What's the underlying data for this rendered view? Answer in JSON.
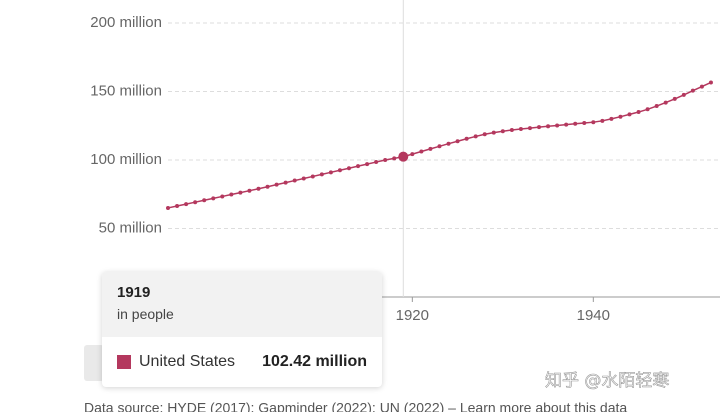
{
  "chart_data": {
    "type": "line",
    "x": [
      1893,
      1894,
      1895,
      1896,
      1897,
      1898,
      1899,
      1900,
      1901,
      1902,
      1903,
      1904,
      1905,
      1906,
      1907,
      1908,
      1909,
      1910,
      1911,
      1912,
      1913,
      1914,
      1915,
      1916,
      1917,
      1918,
      1919,
      1920,
      1921,
      1922,
      1923,
      1924,
      1925,
      1926,
      1927,
      1928,
      1929,
      1930,
      1931,
      1932,
      1933,
      1934,
      1935,
      1936,
      1937,
      1938,
      1939,
      1940,
      1941,
      1942,
      1943,
      1944,
      1945,
      1946,
      1947,
      1948,
      1949,
      1950,
      1951,
      1952,
      1953
    ],
    "series": [
      {
        "name": "United States",
        "color": "#b4385e",
        "values": [
          65.0,
          66.4,
          67.8,
          69.2,
          70.6,
          72.0,
          73.4,
          74.8,
          76.2,
          77.6,
          79.0,
          80.5,
          82.0,
          83.5,
          85.0,
          86.5,
          88.0,
          89.5,
          91.0,
          92.5,
          94.0,
          95.5,
          97.0,
          98.5,
          100.0,
          101.2,
          102.42,
          104.3,
          106.2,
          108.1,
          110.0,
          111.9,
          113.7,
          115.5,
          117.2,
          118.8,
          120.0,
          121.0,
          121.9,
          122.6,
          123.3,
          124.0,
          124.6,
          125.2,
          125.8,
          126.5,
          127.0,
          127.6,
          128.6,
          130.0,
          131.6,
          133.3,
          135.0,
          137.0,
          139.4,
          141.9,
          144.6,
          147.5,
          150.6,
          153.6,
          156.6
        ]
      }
    ],
    "xlim": [
      1893,
      1954
    ],
    "xticks": [
      1920,
      1940
    ],
    "ylim": [
      0,
      200
    ],
    "yticks": [
      {
        "value": 50,
        "label": "50 million"
      },
      {
        "value": 100,
        "label": "100 million"
      },
      {
        "value": 150,
        "label": "150 million"
      },
      {
        "value": 200,
        "label": "200 million"
      }
    ],
    "grid": true,
    "tooltip": {
      "x": 1919,
      "unit": "in people",
      "value_label": "102.42 million"
    },
    "source": "Data source: HYDE (2017); Gapminder (2022); UN (2022) – Learn more about this data",
    "watermark": "知乎 @水陌轻寒"
  }
}
